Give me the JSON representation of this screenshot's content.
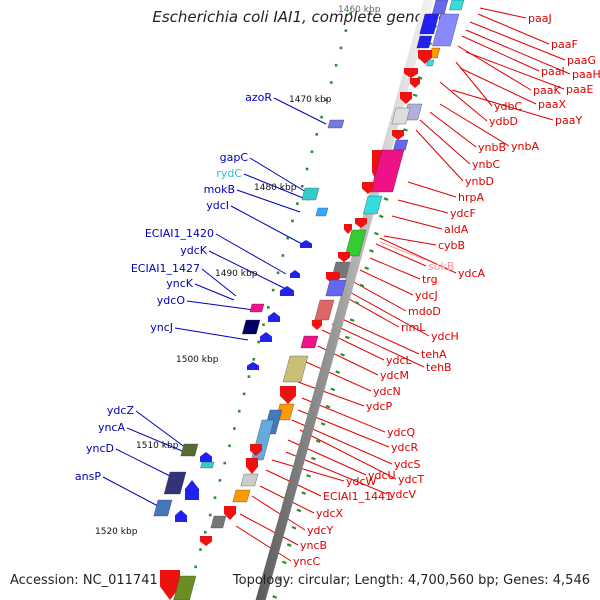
{
  "title": "Escherichia coli IAI1, complete genome",
  "footer": {
    "accession": "Accession: NC_011741",
    "summary": "Topology: circular; Length: 4,700,560 bp; Genes: 4,546"
  },
  "colors": {
    "backbone": "#808080",
    "tick": "#2e8b2e",
    "label_right": "#dd0000",
    "label_left": "#0000bb",
    "label_rna_cyan": "#33bbdd",
    "label_rna_pink": "#ff9999"
  },
  "scale_labels": [
    {
      "text": "1460 kbp"
    },
    {
      "text": "1470 kbp"
    },
    {
      "text": "1480 kbp"
    },
    {
      "text": "1490 kbp"
    },
    {
      "text": "1500 kbp"
    },
    {
      "text": "1510 kbp"
    },
    {
      "text": "1520 kbp"
    }
  ],
  "right_labels": [
    {
      "text": "paaJ"
    },
    {
      "text": "paaF"
    },
    {
      "text": "paaG"
    },
    {
      "text": "paaH"
    },
    {
      "text": "paaI"
    },
    {
      "text": "paaK"
    },
    {
      "text": "paaE"
    },
    {
      "text": "ydbC"
    },
    {
      "text": "paaX"
    },
    {
      "text": "ydbD"
    },
    {
      "text": "paaY"
    },
    {
      "text": "ynbA"
    },
    {
      "text": "ynbB"
    },
    {
      "text": "ynbC"
    },
    {
      "text": "ynbD"
    },
    {
      "text": "hrpA"
    },
    {
      "text": "ydcF"
    },
    {
      "text": "aldA"
    },
    {
      "text": "cybB"
    },
    {
      "text": "sokB"
    },
    {
      "text": "ydcA"
    },
    {
      "text": "trg"
    },
    {
      "text": "ydcJ"
    },
    {
      "text": "mdoD"
    },
    {
      "text": "rimL"
    },
    {
      "text": "ydcH"
    },
    {
      "text": "tehA"
    },
    {
      "text": "ydcL"
    },
    {
      "text": "tehB"
    },
    {
      "text": "ydcM"
    },
    {
      "text": "ydcN"
    },
    {
      "text": "ydcP"
    },
    {
      "text": "ydcQ"
    },
    {
      "text": "ydcR"
    },
    {
      "text": "ydcS"
    },
    {
      "text": "ydcT"
    },
    {
      "text": "ydcU"
    },
    {
      "text": "ydcV"
    },
    {
      "text": "ydcW"
    },
    {
      "text": "ECIAI1_1441"
    },
    {
      "text": "ydcX"
    },
    {
      "text": "ydcY"
    },
    {
      "text": "yncB"
    },
    {
      "text": "yncC"
    }
  ],
  "left_labels": [
    {
      "text": "azoR"
    },
    {
      "text": "gapC"
    },
    {
      "text": "rydC"
    },
    {
      "text": "mokB"
    },
    {
      "text": "ydcI"
    },
    {
      "text": "ECIAI1_1420"
    },
    {
      "text": "ydcK"
    },
    {
      "text": "ECIAI1_1427"
    },
    {
      "text": "yncK"
    },
    {
      "text": "ydcO"
    },
    {
      "text": "yncJ"
    },
    {
      "text": "ydcZ"
    },
    {
      "text": "yncA"
    },
    {
      "text": "yncD"
    },
    {
      "text": "ansP"
    }
  ]
}
